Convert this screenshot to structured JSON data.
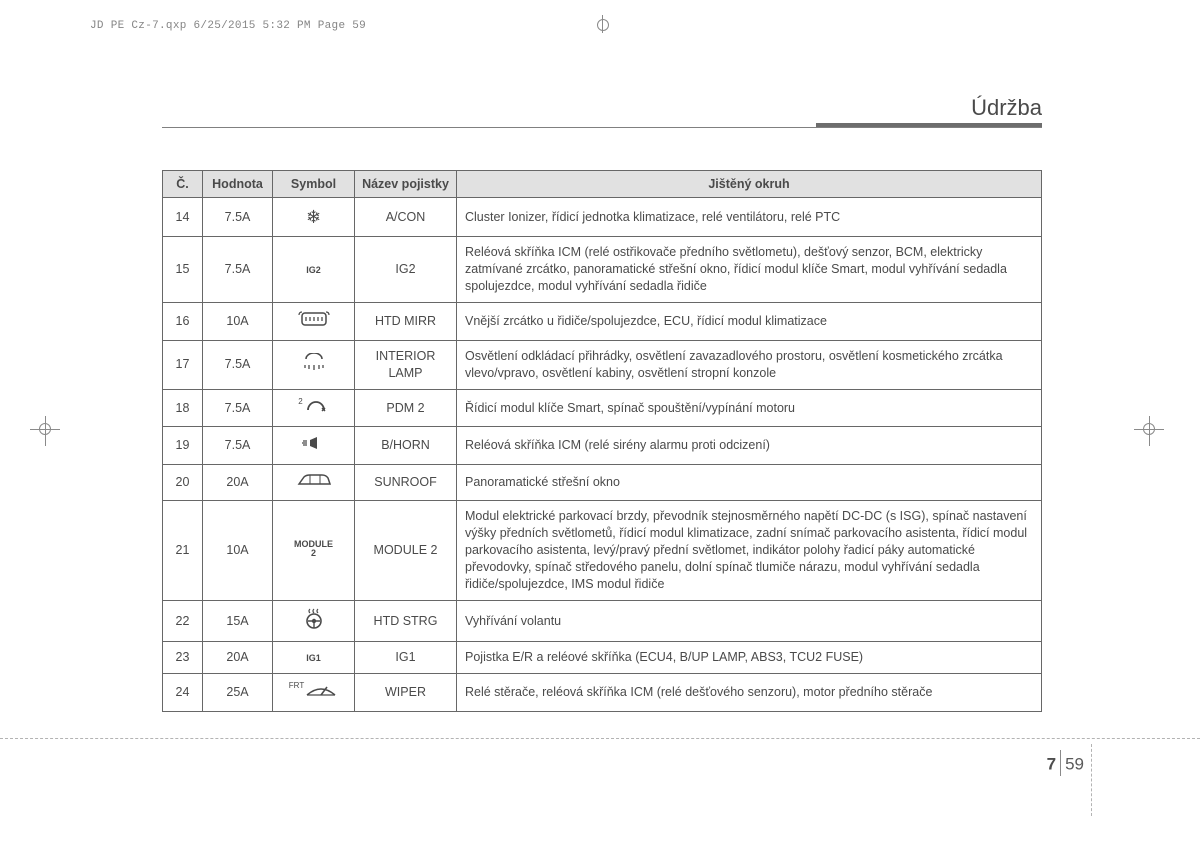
{
  "print_header": "JD PE Cz-7.qxp  6/25/2015  5:32 PM  Page 59",
  "section_title": "Údržba",
  "page": {
    "section_num": "7",
    "page_num": "59"
  },
  "table": {
    "headers": {
      "num": "Č.",
      "value": "Hodnota",
      "symbol": "Symbol",
      "fuse_name": "Název pojistky",
      "circuit": "Jištěný okruh"
    },
    "rows": [
      {
        "n": "14",
        "val": "7.5A",
        "sym_kind": "glyph",
        "sym": "❄",
        "name": "A/CON",
        "desc": "Cluster Ionizer, řídicí jednotka klimatizace, relé ventilátoru, relé PTC"
      },
      {
        "n": "15",
        "val": "7.5A",
        "sym_kind": "text",
        "sym": "IG2",
        "name": "IG2",
        "desc": "Reléová skříňka ICM (relé ostřikovače předního světlometu), dešťový senzor, BCM, elektricky zatmívané zrcátko, panoramatické střešní okno, řídicí modul klíče Smart, modul vyhřívání sedadla spolujezdce, modul vyhřívání sedadla řidiče"
      },
      {
        "n": "16",
        "val": "10A",
        "sym_kind": "svg",
        "sym": "htd_mirr",
        "name": "HTD MIRR",
        "desc": "Vnější zrcátko u  řidiče/spolujezdce, ECU, řídicí modul klimatizace"
      },
      {
        "n": "17",
        "val": "7.5A",
        "sym_kind": "svg",
        "sym": "interior_lamp",
        "name": "INTERIOR LAMP",
        "desc": "Osvětlení odkládací přihrádky, osvětlení zavazadlového prostoru, osvětlení kosmetického zrcátka vlevo/vpravo, osvětlení kabiny, osvětlení stropní konzole"
      },
      {
        "n": "18",
        "val": "7.5A",
        "sym_kind": "svg",
        "sym": "pdm2",
        "sup": "2",
        "name": "PDM 2",
        "desc": "Řídicí modul klíče Smart, spínač spouštění/vypínání motoru"
      },
      {
        "n": "19",
        "val": "7.5A",
        "sym_kind": "svg",
        "sym": "horn",
        "name": "B/HORN",
        "desc": "Reléová skříňka ICM (relé sirény alarmu proti odcizení)"
      },
      {
        "n": "20",
        "val": "20A",
        "sym_kind": "svg",
        "sym": "sunroof",
        "name": "SUNROOF",
        "desc": "Panoramatické střešní okno"
      },
      {
        "n": "21",
        "val": "10A",
        "sym_kind": "text2",
        "sym": "MODULE",
        "sym2": "2",
        "name": "MODULE 2",
        "desc": "Modul elektrické parkovací brzdy, převodník stejnosměrného napětí DC-DC (s ISG), spínač nastavení výšky předních světlometů, řídicí modul klimatizace, zadní snímač parkovacího asistenta, řídicí modul parkovacího asistenta, levý/pravý přední světlomet, indikátor polohy řadicí páky automatické převodovky, spínač středového panelu, dolní spínač tlumiče nárazu, modul vyhřívání sedadla řidiče/spolujezdce, IMS modul řidiče"
      },
      {
        "n": "22",
        "val": "15A",
        "sym_kind": "svg",
        "sym": "htd_strg",
        "name": "HTD STRG",
        "desc": "Vyhřívání volantu"
      },
      {
        "n": "23",
        "val": "20A",
        "sym_kind": "text",
        "sym": "IG1",
        "name": "IG1",
        "desc": "Pojistka E/R a reléové skříňka (ECU4, B/UP LAMP, ABS3, TCU2 FUSE)"
      },
      {
        "n": "24",
        "val": "25A",
        "sym_kind": "svg",
        "sym": "wiper",
        "sup": "FRT",
        "name": "WIPER",
        "desc": "Relé stěrače, reléová skříňka ICM (relé dešťového senzoru), motor předního stěrače"
      }
    ]
  },
  "colors": {
    "text": "#4a4a4a",
    "header_bg": "#e1e1e1",
    "border": "#676767",
    "dashed": "#b3b3b3",
    "reg_mark": "#8a8a8a"
  }
}
